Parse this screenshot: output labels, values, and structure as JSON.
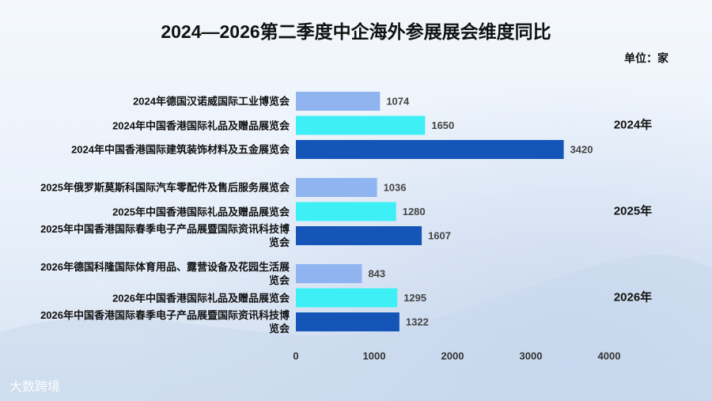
{
  "chart_data": {
    "type": "bar",
    "orientation": "horizontal",
    "title": "2024—2026第二季度中企海外参展展会维度同比",
    "unit": "单位：家",
    "categories": [
      "2024年德国汉诺威国际工业博览会",
      "2024年中国香港国际礼品及赠品展览会",
      "2024年中国香港国际建筑装饰材料及五金展览会",
      "2025年俄罗斯莫斯科国际汽车零配件及售后服务展览会",
      "2025年中国香港国际礼品及赠品展览会",
      "2025年中国香港国际春季电子产品展暨国际资讯科技博览会",
      "2026年德国科隆国际体育用品、露营设备及花园生活展览会",
      "2026年中国香港国际礼品及赠品展览会",
      "2026年中国香港国际春季电子产品展暨国际资讯科技博览会"
    ],
    "values": [
      1074,
      1650,
      3420,
      1036,
      1280,
      1607,
      843,
      1295,
      1322
    ],
    "colors": [
      "#8fb4ef",
      "#3ef0f5",
      "#1655b8",
      "#8fb4ef",
      "#3ef0f5",
      "#1655b8",
      "#8fb4ef",
      "#3ef0f5",
      "#1655b8"
    ],
    "group_labels": [
      "2024年",
      "2025年",
      "2026年"
    ],
    "xlim": [
      0,
      4000
    ],
    "xticks": [
      0,
      1000,
      2000,
      3000,
      4000
    ],
    "grid": false,
    "watermark": "大数跨境"
  }
}
